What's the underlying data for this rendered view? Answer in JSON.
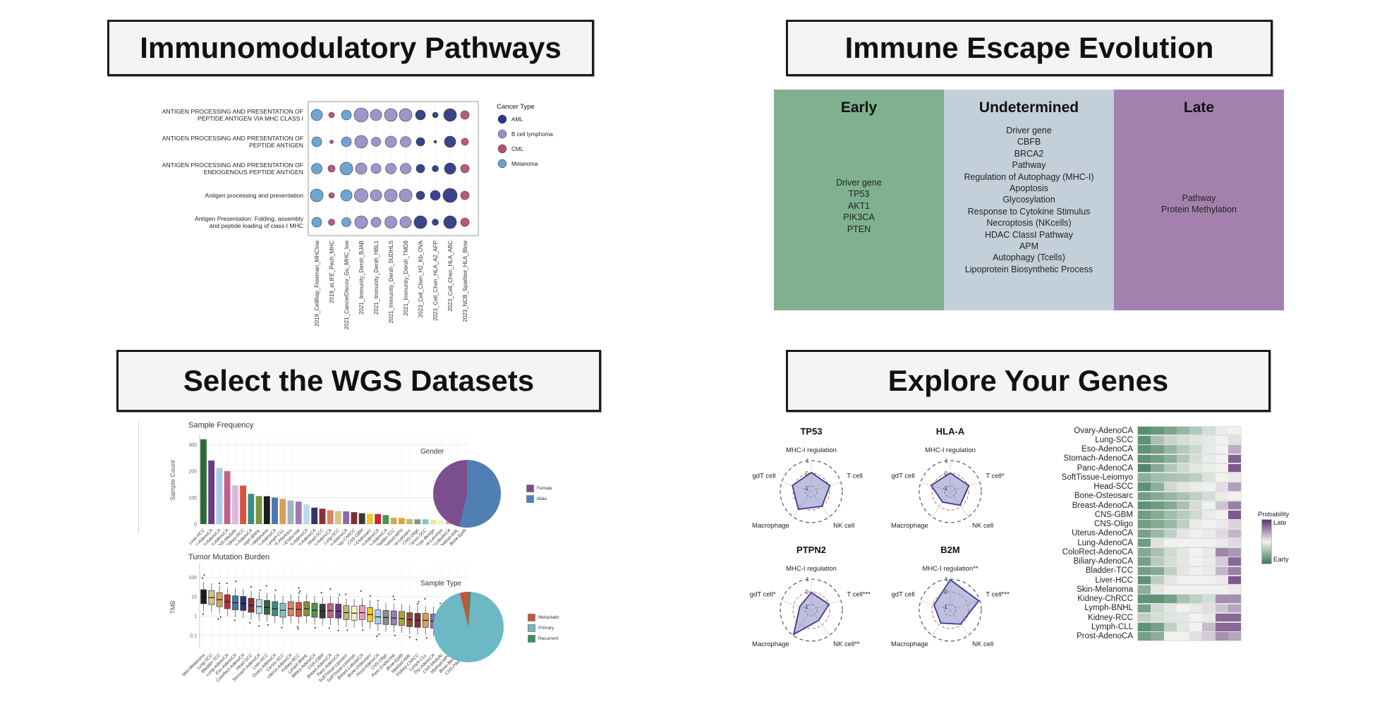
{
  "panels": {
    "pathways": {
      "title": "Immunomodulatory Pathways",
      "dotplot": {
        "rows": [
          [
            "ANTIGEN PROCESSING AND PRESENTATION OF",
            "PEPTIDE ANTIGEN VIA MHC CLASS I"
          ],
          [
            "ANTIGEN PROCESSING AND PRESENTATION OF",
            "PEPTIDE ANTIGEN"
          ],
          [
            "ANTIGEN PROCESSING AND PRESENTATION OF",
            "ENDOGENOUS PEPTIDE ANTIGEN"
          ],
          [
            "Antigen processing and presentation"
          ],
          [
            "Antigen Presentation: Folding, assembly",
            "and peptide loading of class I MHC"
          ]
        ],
        "columns": [
          "2019_CellRep_Freeman_MHClow",
          "2019_eLIFE_Pech_MHC",
          "2021_CancerDiscov_Gu_MHC_low",
          "2021_Immunity_Dersh_BJAB",
          "2021_Immunity_Dersh_HBL1",
          "2021_Immunity_Dersh_SUDHLS",
          "2021_Immunity_Dersh_TMD8",
          "2023_Cell_Chen_H2_Kb_OVA",
          "2023_Cell_Chen_HLA_A2_AFP",
          "2023_Cell_Chen_HLA_ABC",
          "2023_NCB_Sparbier_HLA_Blow"
        ],
        "column_cancer_type": [
          "Melanoma",
          "CML",
          "Melanoma",
          "B cell lymphoma",
          "B cell lymphoma",
          "B cell lymphoma",
          "B cell lymphoma",
          "AML",
          "AML",
          "AML",
          "CML"
        ],
        "dot_radii": [
          [
            8,
            4,
            7,
            10,
            8,
            9,
            9,
            7,
            4,
            9,
            6
          ],
          [
            7,
            2.5,
            7,
            9,
            6.5,
            8,
            7.5,
            6,
            2,
            8,
            5
          ],
          [
            7.5,
            5,
            9,
            8,
            7,
            7.5,
            7.5,
            6,
            4.5,
            8,
            6
          ],
          [
            9,
            4,
            8,
            9.5,
            8,
            9,
            9,
            6,
            7,
            10,
            6
          ],
          [
            7,
            4.5,
            6.5,
            9,
            7,
            8.5,
            8,
            9,
            4.5,
            9,
            6
          ]
        ],
        "legend": {
          "title": "Cancer Type",
          "items": [
            {
              "label": "AML",
              "color": "#2e3a87"
            },
            {
              "label": "B cell lymphoma",
              "color": "#9791c7"
            },
            {
              "label": "CML",
              "color": "#b4507a"
            },
            {
              "label": "Melanoma",
              "color": "#68a0d0"
            }
          ]
        }
      }
    },
    "evolution": {
      "title": "Immune Escape Evolution",
      "columns": [
        {
          "header": "Early",
          "color": "#7fb08f",
          "items": [
            "Driver gene",
            "TP53",
            "AKT1",
            "PIK3CA",
            "PTEN"
          ]
        },
        {
          "header": "Undetermined",
          "color": "#c3d0d9",
          "items": [
            "Driver gene",
            "CBFB",
            "BRCA2",
            "Pathway",
            "Regulation of Autophagy (MHC-I)",
            "Apoptosis",
            "Glycosylation",
            "Response to Cytokine Stimulus",
            "Necroptosis (NKcells)",
            "HDAC ClassI Pathway",
            "APM",
            "Autophagy (Tcells)",
            "Lipoprotein Biosynthetic Process"
          ]
        },
        {
          "header": "Late",
          "color": "#a481ad",
          "items": [
            "Pathway",
            "Protein Methylation"
          ]
        }
      ]
    },
    "datasets": {
      "title": "Select the WGS Datasets",
      "sample_frequency": {
        "type": "bar",
        "title": "Sample Frequency",
        "ylabel": "Sample Count",
        "yticks": [
          0,
          100,
          200,
          300
        ],
        "ylim": [
          0,
          330
        ],
        "categories": [
          "Liver-HCC",
          "Panc-AdenoCA",
          "Prost-AdenoCA",
          "Breast-AdenoCA",
          "CNS-Medullo",
          "Kidney-RCC",
          "Ovary-AdenoCA",
          "Lymph-BNHL",
          "Skin-Melanoma",
          "Eso-AdenoCA",
          "Lymph-CLL",
          "CNS-PiloAstro",
          "Panc-Endocrine",
          "Stomach-AdenoCA",
          "ColoRect-AdenoCA",
          "Head-SCC",
          "Uterus-AdenoCA",
          "Lung-SCC",
          "Thy-AdenoCA",
          "Kidney-ChRCC",
          "CNS-GBM",
          "Bone-Osteosarc",
          "Lung-AdenoCA",
          "Biliary-AdenoCA",
          "Bladder-TCC",
          "Myeloid-MPN",
          "SoftTissue-Liposarc",
          "CNS-Oligo",
          "Cervix-SCC",
          "Bone-Benign",
          "SoftTissue-Leiomyo",
          "Breast-LobularCA",
          "Myeloid-AML",
          "Bone-Epith"
        ],
        "values": [
          320,
          240,
          212,
          200,
          146,
          145,
          114,
          106,
          105,
          100,
          95,
          89,
          85,
          75,
          62,
          58,
          52,
          49,
          48,
          45,
          41,
          39,
          38,
          34,
          24,
          23,
          19,
          18,
          18,
          16,
          15,
          13,
          11,
          10
        ],
        "colors": [
          "#2d6b36",
          "#6a3d82",
          "#a9cde8",
          "#c4608a",
          "#d8b9dc",
          "#d9533c",
          "#3d8c85",
          "#7d9440",
          "#1c1c1c",
          "#4a77b0",
          "#dd9d55",
          "#9fb2bf",
          "#9b7cb5",
          "#bcdcec",
          "#30356e",
          "#8c2f39",
          "#e08060",
          "#d8c583",
          "#8b6bb0",
          "#7e3038",
          "#3a3a3a",
          "#ecc92f",
          "#c4293d",
          "#4e9450",
          "#d9a253",
          "#d9a83b",
          "#b9b97a",
          "#8e8e8e",
          "#7fc4c9",
          "#efe79b",
          "#f4f0c0",
          "#e89ac0",
          "#9b4a2a",
          "#a4a838"
        ]
      },
      "gender_pie": {
        "type": "pie",
        "title": "Gender",
        "slices": [
          {
            "label": "Female",
            "color": "#7b4f8e",
            "start_deg": 193,
            "end_deg": 360
          },
          {
            "label": "Male",
            "color": "#4f7fb5",
            "start_deg": 0,
            "end_deg": 193
          }
        ],
        "legend_order": [
          "Female",
          "Male"
        ]
      },
      "tmb": {
        "type": "boxplot",
        "title": "Tumor Mutation Burden",
        "ylabel": "TMB",
        "yticks": [
          100,
          10,
          1,
          0.1
        ],
        "categories": [
          "Skin-Melanoma",
          "Lung-SCC",
          "Bladder-TCC",
          "Lung-AdenoCA",
          "Eso-AdenoCA",
          "ColoRect-AdenoCA",
          "Head-SCC",
          "Stomach-AdenoCA",
          "Liver-HCC",
          "Ovary-AdenoCA",
          "Cervix-SCC",
          "Uterus-AdenoCA",
          "Kidney-RCC",
          "Lymph-BNHL",
          "Biliary-AdenoCA",
          "CNS-GBM",
          "Breast-AdenoCA",
          "Panc-AdenoCA",
          "SoftTissue-Liposarc",
          "SoftTissue-Leiomyo",
          "Breast-LobularCA",
          "Bone-Osteosarc",
          "Prost-AdenoCA",
          "CNS-Oligo",
          "Panc-Endocrine",
          "Bone-Epith",
          "Myeloid-AML",
          "Kidney-ChRCC",
          "Lymph-CLL",
          "Thy-AdenoCA",
          "CNS-Medullo",
          "Myeloid-MPN",
          "Bone-Benign",
          "CNS-PiloAstro"
        ],
        "medians": [
          10,
          9,
          7,
          5.5,
          4.8,
          4.5,
          3.6,
          3.1,
          2.8,
          2.4,
          2.0,
          2.4,
          2.2,
          2.4,
          2.0,
          1.8,
          1.9,
          1.8,
          1.5,
          1.4,
          1.5,
          1.2,
          0.9,
          0.85,
          0.8,
          0.75,
          0.65,
          0.6,
          0.6,
          0.55,
          0.5,
          0.45,
          0.22,
          0.12
        ],
        "colors": [
          "#1c1c1c",
          "#d8c583",
          "#d9a253",
          "#c4293d",
          "#4a77b0",
          "#30356e",
          "#8c2f39",
          "#bcdcec",
          "#2d6b36",
          "#3d8c85",
          "#7fc4c9",
          "#e08060",
          "#d9533c",
          "#7d9440",
          "#4e9450",
          "#3a3a3a",
          "#c4608a",
          "#6a3d82",
          "#b9b97a",
          "#f4f0c0",
          "#e89ac0",
          "#ecc92f",
          "#a9cde8",
          "#8e8e8e",
          "#9b7cb5",
          "#a4a838",
          "#9b4a2a",
          "#7e3038",
          "#dd9d55",
          "#8b6bb0",
          "#d8b9dc",
          "#d9a83b",
          "#efe79b",
          "#9fb2bf"
        ]
      },
      "sample_type_pie": {
        "type": "pie",
        "title": "Sample Type",
        "slices": [
          {
            "label": "Metastatic",
            "color": "#c9523f",
            "start_deg": 346,
            "end_deg": 360
          },
          {
            "label": "Primary",
            "color": "#6cb8c4",
            "start_deg": 4,
            "end_deg": 346
          },
          {
            "label": "Recurrent",
            "color": "#3e8e5a",
            "start_deg": 0,
            "end_deg": 4
          }
        ],
        "legend_order": [
          "Metastatic",
          "Primary",
          "Recurrent"
        ]
      }
    },
    "genes": {
      "title": "Explore Your Genes",
      "radar_scale": {
        "outer": "1",
        "mid": "0",
        "inner": "-1"
      },
      "radars": [
        {
          "gene": "TP53",
          "axes": [
            "MHC-I regulation",
            "T cell",
            "NK cell",
            "Macrophage",
            "gdT cell"
          ],
          "values": [
            0.06,
            0.1,
            -0.02,
            0.28,
            0.12
          ]
        },
        {
          "gene": "HLA-A",
          "axes": [
            "MHC-I regulation",
            "T cell*",
            "NK cell",
            "Macrophage",
            "gdT cell"
          ],
          "values": [
            0.02,
            0.1,
            -0.12,
            -0.42,
            0.15
          ]
        },
        {
          "gene": "PTPN2",
          "axes": [
            "MHC-I regulation",
            "T cell***",
            "NK cell**",
            "Macrophage",
            "gdT cell*"
          ],
          "values": [
            -0.05,
            0.02,
            -0.45,
            0.92,
            -0.5
          ]
        },
        {
          "gene": "B2M",
          "axes": [
            "MHC-I regulation**",
            "T cell***",
            "NK cell",
            "Macrophage",
            "gdT cell"
          ],
          "values": [
            0.95,
            0.92,
            -0.08,
            -0.18,
            -0.1
          ]
        }
      ],
      "escape_probability": {
        "type": "heatmap",
        "legend": {
          "title": "Probability",
          "top": "Late",
          "bottom": "Early",
          "early_color": "#3c7a58",
          "mid_color": "#f1f1ef",
          "late_color": "#5f3472"
        },
        "categories": [
          "Ovary-AdenoCA",
          "Lung-SCC",
          "Eso-AdenoCA",
          "Stomach-AdenoCA",
          "Panc-AdenoCA",
          "SoftTissue-Leiomyo",
          "Head-SCC",
          "Bone-Osteosarc",
          "Breast-AdenoCA",
          "CNS-GBM",
          "CNS-Oligo",
          "Uterus-AdenoCA",
          "Lung-AdenoCA",
          "ColoRect-AdenoCA",
          "Biliary-AdenoCA",
          "Bladder-TCC",
          "Liver-HCC",
          "Skin-Melanoma",
          "Kidney-ChRCC",
          "Lymph-BNHL",
          "Kidney-RCC",
          "Lymph-CLL",
          "Prost-AdenoCA"
        ],
        "rows": [
          [
            0.08,
            0.12,
            0.18,
            0.25,
            0.33,
            0.42,
            0.48,
            0.5
          ],
          [
            0.1,
            0.3,
            0.38,
            0.42,
            0.45,
            0.47,
            0.5,
            0.55
          ],
          [
            0.1,
            0.15,
            0.25,
            0.33,
            0.4,
            0.47,
            0.5,
            0.68
          ],
          [
            0.1,
            0.15,
            0.22,
            0.32,
            0.42,
            0.48,
            0.5,
            0.88
          ],
          [
            0.06,
            0.2,
            0.32,
            0.4,
            0.46,
            0.49,
            0.5,
            0.9
          ],
          [
            0.22,
            0.28,
            0.3,
            0.32,
            0.36,
            0.44,
            0.5,
            0.52
          ],
          [
            0.1,
            0.22,
            0.4,
            0.45,
            0.48,
            0.5,
            0.55,
            0.72
          ],
          [
            0.15,
            0.2,
            0.25,
            0.3,
            0.36,
            0.42,
            0.48,
            0.5
          ],
          [
            0.1,
            0.14,
            0.2,
            0.3,
            0.42,
            0.5,
            0.62,
            0.8
          ],
          [
            0.15,
            0.2,
            0.28,
            0.34,
            0.4,
            0.48,
            0.5,
            0.9
          ],
          [
            0.15,
            0.2,
            0.26,
            0.36,
            0.48,
            0.5,
            0.52,
            0.58
          ],
          [
            0.16,
            0.26,
            0.36,
            0.46,
            0.5,
            0.52,
            0.56,
            0.66
          ],
          [
            0.14,
            0.44,
            0.5,
            0.5,
            0.5,
            0.5,
            0.52,
            0.56
          ],
          [
            0.2,
            0.3,
            0.4,
            0.46,
            0.5,
            0.52,
            0.78,
            0.74
          ],
          [
            0.16,
            0.34,
            0.42,
            0.46,
            0.5,
            0.52,
            0.6,
            0.86
          ],
          [
            0.15,
            0.2,
            0.36,
            0.46,
            0.5,
            0.52,
            0.66,
            0.8
          ],
          [
            0.1,
            0.35,
            0.46,
            0.5,
            0.5,
            0.5,
            0.52,
            0.9
          ],
          [
            0.22,
            0.46,
            0.5,
            0.5,
            0.5,
            0.5,
            0.5,
            0.52
          ],
          [
            0.1,
            0.1,
            0.16,
            0.3,
            0.36,
            0.42,
            0.76,
            0.76
          ],
          [
            0.16,
            0.4,
            0.46,
            0.5,
            0.52,
            0.55,
            0.62,
            0.7
          ],
          [
            0.36,
            0.42,
            0.45,
            0.46,
            0.5,
            0.52,
            0.86,
            0.86
          ],
          [
            0.1,
            0.16,
            0.36,
            0.46,
            0.5,
            0.64,
            0.86,
            0.86
          ],
          [
            0.16,
            0.22,
            0.5,
            0.5,
            0.55,
            0.6,
            0.76,
            0.7
          ]
        ]
      }
    }
  }
}
